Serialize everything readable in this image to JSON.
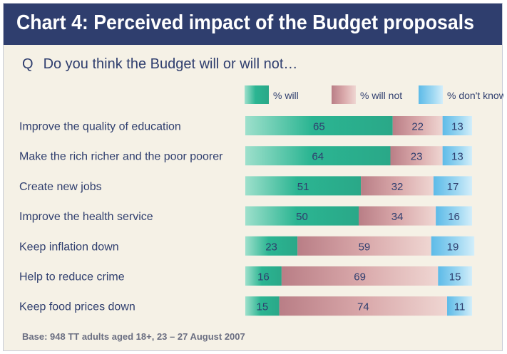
{
  "header": {
    "title": "Chart 4: Perceived impact of the Budget proposals"
  },
  "question": {
    "prefix": "Q",
    "text": "Do you think the Budget will or will not…"
  },
  "footer": {
    "base": "Base: 948 TT adults aged 18+, 23 – 27 August 2007"
  },
  "colors": {
    "title_bg": "#2f3e6e",
    "panel_bg": "#f5f1e6",
    "will": "#2bb592",
    "will_not": "#c98f94",
    "dont_know": "#7ec9ee",
    "text": "#2f3e6e"
  },
  "chart_data": {
    "type": "bar",
    "orientation": "horizontal",
    "stacked": true,
    "categories": [
      "Improve the quality of education",
      "Make the rich richer and the poor poorer",
      "Create new jobs",
      "Improve the health service",
      "Keep inflation down",
      "Help to reduce crime",
      "Keep food prices down"
    ],
    "series": [
      {
        "name": "% will",
        "values": [
          65,
          64,
          51,
          50,
          23,
          16,
          15
        ]
      },
      {
        "name": "% will not",
        "values": [
          22,
          23,
          32,
          34,
          59,
          69,
          74
        ]
      },
      {
        "name": "% don't know",
        "values": [
          13,
          13,
          17,
          16,
          19,
          15,
          11
        ]
      }
    ],
    "xlim": [
      0,
      100
    ],
    "legend_position": "top-right",
    "grid": false
  }
}
